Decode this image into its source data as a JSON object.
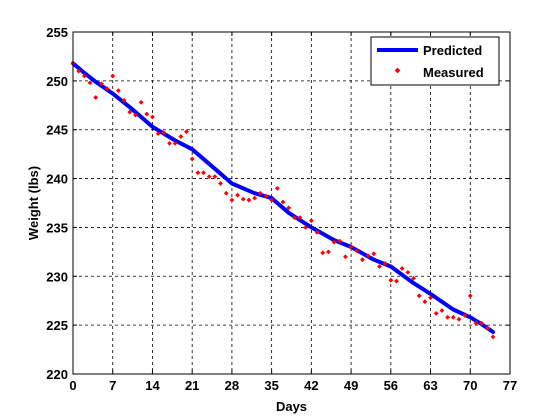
{
  "chart_data": {
    "type": "line",
    "title": "",
    "xlabel": "Days",
    "ylabel": "Weight (lbs)",
    "xlim": [
      0,
      77
    ],
    "ylim": [
      220,
      255
    ],
    "xticks": [
      "0",
      "7",
      "14",
      "21",
      "28",
      "35",
      "42",
      "49",
      "56",
      "63",
      "70",
      "77"
    ],
    "yticks": [
      "220",
      "225",
      "230",
      "235",
      "240",
      "245",
      "250",
      "255"
    ],
    "grid": true,
    "legend_position": "top-right",
    "series": [
      {
        "name": "Predicted",
        "style": "line",
        "color": "#0000ff",
        "x": [
          0,
          2,
          4,
          7,
          10,
          14,
          18,
          21,
          25,
          28,
          32,
          35,
          38,
          42,
          46,
          49,
          53,
          56,
          60,
          63,
          67,
          70,
          72,
          74
        ],
        "y": [
          251.8,
          250.8,
          249.9,
          248.7,
          247.3,
          245.3,
          243.9,
          243.0,
          241.0,
          239.5,
          238.5,
          238.0,
          236.5,
          235.0,
          233.7,
          233.0,
          231.7,
          231.0,
          229.3,
          228.2,
          226.6,
          225.8,
          225.1,
          224.3
        ]
      },
      {
        "name": "Measured",
        "style": "markers",
        "color": "#ff0000",
        "x": [
          0,
          1,
          2,
          3,
          4,
          5,
          6,
          7,
          8,
          9,
          10,
          11,
          12,
          13,
          14,
          15,
          16,
          17,
          18,
          19,
          20,
          21,
          22,
          23,
          24,
          25,
          26,
          27,
          28,
          29,
          30,
          31,
          32,
          33,
          34,
          35,
          36,
          37,
          38,
          39,
          40,
          41,
          42,
          43,
          44,
          45,
          46,
          47,
          48,
          49,
          50,
          51,
          52,
          53,
          54,
          55,
          56,
          57,
          58,
          59,
          60,
          61,
          62,
          63,
          64,
          65,
          66,
          67,
          68,
          69,
          70,
          71,
          72,
          73,
          74
        ],
        "y": [
          251.8,
          251.0,
          250.5,
          249.8,
          248.3,
          249.7,
          249.2,
          250.5,
          249.0,
          248.0,
          246.8,
          246.5,
          247.8,
          246.6,
          246.3,
          244.6,
          244.7,
          243.6,
          243.6,
          244.3,
          244.8,
          242.0,
          240.6,
          240.6,
          240.2,
          240.2,
          239.5,
          238.5,
          237.8,
          238.3,
          237.9,
          237.8,
          238.0,
          238.5,
          238.2,
          237.8,
          239.0,
          237.6,
          237.0,
          236.0,
          236.0,
          235.0,
          235.7,
          234.5,
          232.4,
          232.5,
          233.5,
          233.6,
          232.0,
          233.0,
          232.6,
          231.7,
          232.1,
          232.3,
          231.0,
          231.3,
          229.6,
          229.5,
          230.8,
          230.4,
          229.8,
          228.0,
          227.4,
          227.8,
          226.2,
          226.5,
          225.8,
          225.8,
          225.6,
          226.0,
          228.0,
          225.2,
          225.2,
          224.7,
          223.8
        ]
      }
    ]
  }
}
